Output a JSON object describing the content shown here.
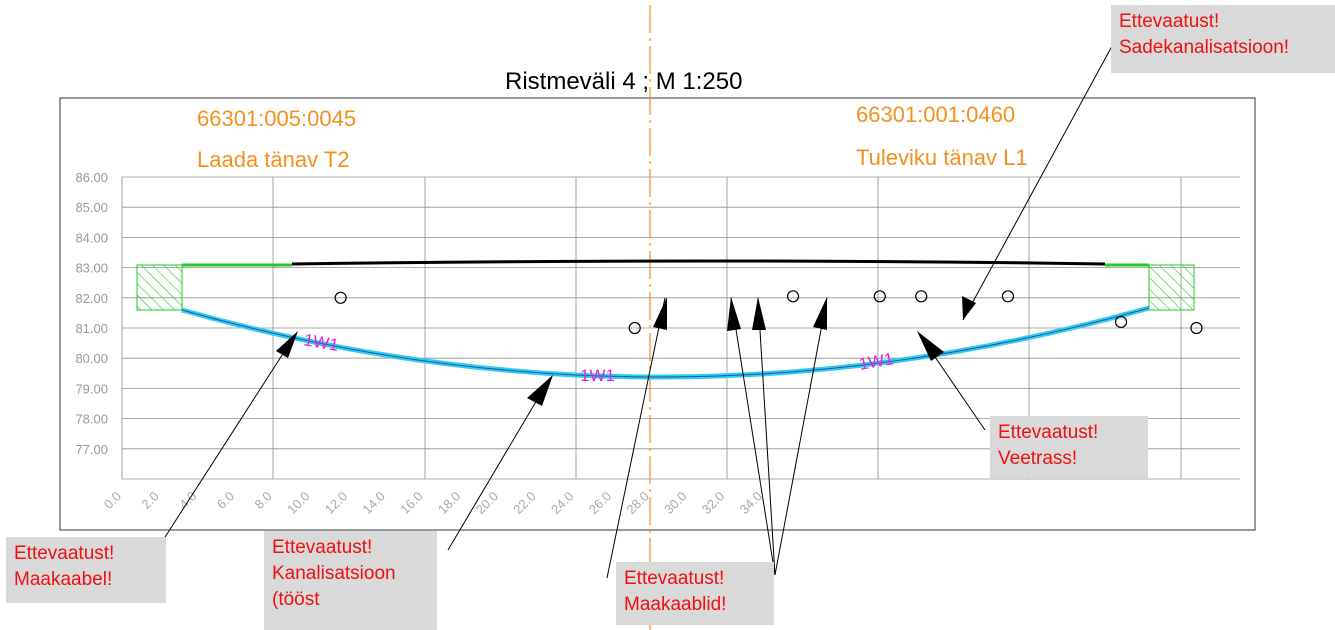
{
  "title": "Ristmeväli 4 ; M 1:250",
  "parcels": {
    "left_id": "66301:005:0045",
    "left_street": "Laada tänav T2",
    "right_id": "66301:001:0460",
    "right_street": "Tuleviku tänav L1"
  },
  "y_ticks": [
    "86.00",
    "85.00",
    "84.00",
    "83.00",
    "82.00",
    "81.00",
    "80.00",
    "79.00",
    "78.00",
    "77.00"
  ],
  "x_ticks": [
    "0.0",
    "2.0",
    "4.0",
    "6.0",
    "8.0",
    "10.0",
    "12.0",
    "14.0",
    "16.0",
    "18.0",
    "20.0",
    "22.0",
    "24.0",
    "26.0",
    "28.0",
    "30.0",
    "32.0",
    "34.0"
  ],
  "line_labels": [
    "1W1",
    "1W1",
    "1W1"
  ],
  "warnings": {
    "sadekanalisatsioon": [
      "Ettevaatust!",
      "Sadekanalisatsioon!"
    ],
    "veetrass": [
      "Ettevaatust!",
      "Veetrass!"
    ],
    "maakaabel": [
      "Ettevaatust!",
      "Maakaabel!"
    ],
    "kanalisatsioon": [
      "Ettevaatust!",
      "Kanalisatsioon",
      "(tööst"
    ],
    "maakaablid": [
      "Ettevaatust!",
      "Maakaablid!"
    ]
  },
  "colors": {
    "parcel_text": "#f39020",
    "warning_text": "#ee1111",
    "warning_bg": "#d9d9d9",
    "cable_line": "#33ccee",
    "surface_line": "#000000",
    "edge_green": "#22cc22",
    "label_magenta": "#dd22dd",
    "grid": "#909090"
  },
  "chart_data": {
    "type": "line",
    "ylim": [
      76.0,
      86.0
    ],
    "xlim": [
      0.0,
      35.0
    ],
    "series": [
      {
        "x": [
          2.0,
          6.0,
          10.0,
          14.0,
          18.0,
          22.0,
          26.0,
          30.0,
          33.7
        ],
        "y": [
          81.6,
          80.6,
          79.9,
          79.5,
          79.45,
          79.6,
          80.0,
          80.8,
          81.7
        ]
      },
      {
        "x": [
          2.0,
          5.8,
          17.5,
          26.0,
          32.3,
          33.7
        ],
        "y": [
          83.1,
          83.1,
          83.2,
          83.2,
          83.1,
          83.1
        ]
      }
    ],
    "utility_points": [
      {
        "x": 5.8,
        "y": 82.0
      },
      {
        "x": 13.6,
        "y": 81.0
      },
      {
        "x": 17.8,
        "y": 82.05
      },
      {
        "x": 20.1,
        "y": 82.05
      },
      {
        "x": 21.2,
        "y": 82.05
      },
      {
        "x": 23.5,
        "y": 82.05
      },
      {
        "x": 26.5,
        "y": 81.2
      },
      {
        "x": 28.5,
        "y": 81.0
      }
    ]
  }
}
